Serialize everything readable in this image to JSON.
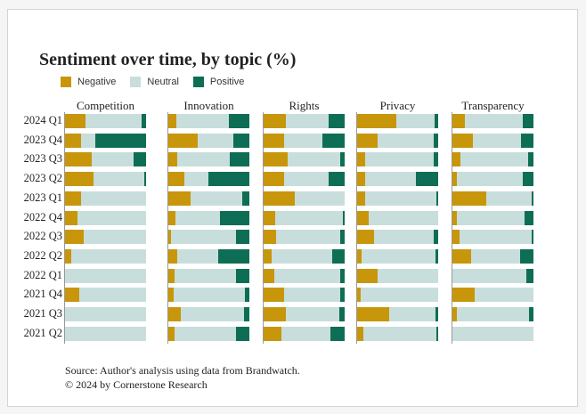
{
  "colors": {
    "negative": "#C8960A",
    "neutral": "#C8DEDC",
    "positive": "#0E6E55"
  },
  "title": "Sentiment over time, by topic (%)",
  "legend": {
    "negative": "Negative",
    "neutral": "Neutral",
    "positive": "Positive"
  },
  "footer": {
    "source": "Source: Author's analysis using data from Brandwatch.",
    "copyright": "© 2024 by Cornerstone Research"
  },
  "chart_data": {
    "type": "bar",
    "stacked": true,
    "orientation": "horizontal",
    "title": "Sentiment over time, by topic (%)",
    "xlim": [
      0,
      100
    ],
    "legend_position": "top-left",
    "categories": [
      "2024 Q1",
      "2023 Q4",
      "2023 Q3",
      "2023 Q2",
      "2023 Q1",
      "2022 Q4",
      "2022 Q3",
      "2022 Q2",
      "2022 Q1",
      "2021 Q4",
      "2021 Q3",
      "2021 Q2"
    ],
    "panels": [
      {
        "name": "Competition",
        "series": [
          {
            "name": "Negative",
            "values": [
              25,
              20,
              33,
              35,
              20,
              15,
              23,
              8,
              0,
              18,
              0,
              0
            ]
          },
          {
            "name": "Neutral",
            "values": [
              70,
              17,
              52,
              63,
              80,
              85,
              77,
              92,
              100,
              82,
              100,
              100
            ]
          },
          {
            "name": "Positive",
            "values": [
              5,
              63,
              15,
              2,
              0,
              0,
              0,
              0,
              0,
              0,
              0,
              0
            ]
          }
        ]
      },
      {
        "name": "Innovation",
        "series": [
          {
            "name": "Negative",
            "values": [
              10,
              36,
              11,
              20,
              27,
              9,
              3,
              11,
              8,
              7,
              15,
              8
            ]
          },
          {
            "name": "Neutral",
            "values": [
              65,
              44,
              65,
              29,
              64,
              55,
              80,
              50,
              75,
              87,
              78,
              76
            ]
          },
          {
            "name": "Positive",
            "values": [
              25,
              20,
              24,
              51,
              9,
              36,
              17,
              39,
              17,
              6,
              7,
              16
            ]
          }
        ]
      },
      {
        "name": "Rights",
        "series": [
          {
            "name": "Negative",
            "values": [
              28,
              25,
              30,
              25,
              38,
              14,
              15,
              10,
              13,
              25,
              28,
              22
            ]
          },
          {
            "name": "Neutral",
            "values": [
              52,
              48,
              65,
              55,
              62,
              84,
              80,
              75,
              82,
              70,
              65,
              60
            ]
          },
          {
            "name": "Positive",
            "values": [
              20,
              27,
              5,
              20,
              0,
              2,
              5,
              15,
              5,
              5,
              7,
              18
            ]
          }
        ]
      },
      {
        "name": "Privacy",
        "series": [
          {
            "name": "Negative",
            "values": [
              48,
              25,
              10,
              10,
              10,
              14,
              21,
              5,
              25,
              4,
              40,
              8
            ]
          },
          {
            "name": "Neutral",
            "values": [
              48,
              69,
              85,
              62,
              88,
              86,
              74,
              92,
              75,
              96,
              57,
              90
            ]
          },
          {
            "name": "Positive",
            "values": [
              4,
              6,
              5,
              28,
              2,
              0,
              5,
              3,
              0,
              0,
              3,
              2
            ]
          }
        ]
      },
      {
        "name": "Transparency",
        "series": [
          {
            "name": "Negative",
            "values": [
              15,
              25,
              10,
              5,
              42,
              5,
              9,
              23,
              0,
              27,
              6,
              0
            ]
          },
          {
            "name": "Neutral",
            "values": [
              72,
              60,
              83,
              82,
              56,
              84,
              89,
              61,
              91,
              73,
              89,
              100
            ]
          },
          {
            "name": "Positive",
            "values": [
              13,
              15,
              7,
              13,
              2,
              11,
              2,
              16,
              9,
              0,
              5,
              0
            ]
          }
        ]
      }
    ]
  }
}
